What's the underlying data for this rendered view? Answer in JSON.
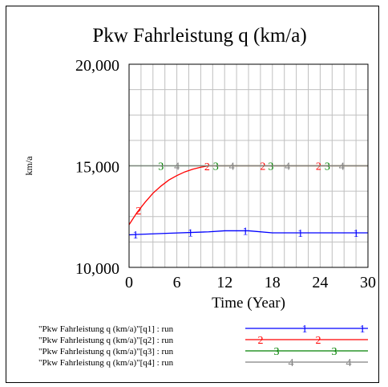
{
  "chart_data": {
    "type": "line",
    "title": "Pkw Fahrleistung q (km/a)",
    "xlabel": "Time (Year)",
    "ylabel": "km/a",
    "xlim": [
      0,
      30
    ],
    "ylim": [
      10000,
      20000
    ],
    "x_ticks": [
      0,
      6,
      12,
      18,
      24,
      30
    ],
    "x_tick_labels": [
      "0",
      "6",
      "12",
      "18",
      "24",
      "30"
    ],
    "y_ticks": [
      10000,
      15000,
      20000
    ],
    "y_tick_labels": [
      "10,000",
      "15,000",
      "20,000"
    ],
    "grid": true,
    "legend_position": "bottom",
    "series": [
      {
        "name": "\"Pkw Fahrleistung q (km/a)\"[q1] : run",
        "marker": "1",
        "color": "#0000ff",
        "x": [
          0,
          1,
          5,
          10,
          12,
          15,
          18,
          20,
          25,
          30
        ],
        "y": [
          11600,
          11620,
          11680,
          11750,
          11800,
          11800,
          11700,
          11700,
          11700,
          11700
        ]
      },
      {
        "name": "\"Pkw Fahrleistung q (km/a)\"[q2] : run",
        "marker": "2",
        "color": "#ff0000",
        "x": [
          0,
          1,
          2,
          3,
          4,
          5,
          6,
          7,
          8,
          9,
          10,
          12,
          15,
          20,
          25,
          30
        ],
        "y": [
          12100,
          12700,
          13200,
          13650,
          14000,
          14300,
          14520,
          14700,
          14830,
          14930,
          15000,
          15000,
          15000,
          15000,
          15000,
          15000
        ]
      },
      {
        "name": "\"Pkw Fahrleistung q (km/a)\"[q3] : run",
        "marker": "3",
        "color": "#008000",
        "x": [
          0,
          30
        ],
        "y": [
          15000,
          15000
        ]
      },
      {
        "name": "\"Pkw Fahrleistung q (km/a)\"[q4] : run",
        "marker": "4",
        "color": "#808080",
        "x": [
          0,
          30
        ],
        "y": [
          15000,
          15000
        ]
      }
    ]
  }
}
